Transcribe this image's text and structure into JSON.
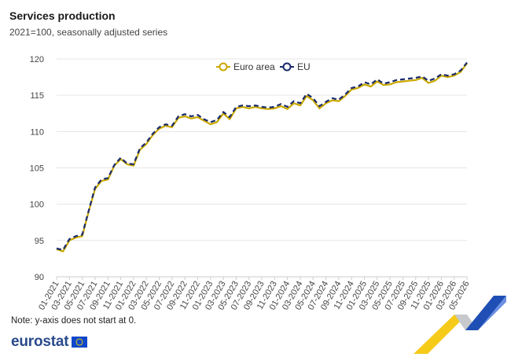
{
  "header": {
    "title": "Services production",
    "subtitle": "2021=100, seasonally adjusted series"
  },
  "footer": {
    "note": "Note: y-axis does not start at 0.",
    "logo_text": "eurostat"
  },
  "colors": {
    "euro_area": "#c9a800",
    "eu": "#1a2a6c",
    "grid": "#e6e6e6",
    "axis": "#cccccc",
    "deco_yellow": "#f5c400",
    "deco_blue": "#1f4fb5",
    "deco_grey": "#c7c9cc"
  },
  "icons": [
    "eu-flag-icon",
    "eurostat-decoration-icon"
  ],
  "chart_data": {
    "type": "line",
    "title": "",
    "xlabel": "",
    "ylabel": "",
    "ylim": [
      90,
      120
    ],
    "yticks": [
      90,
      95,
      100,
      105,
      110,
      115,
      120
    ],
    "grid": "horizontal",
    "legend_position": "top-center",
    "x_start": "2021-01",
    "x_end": "2026-05",
    "xtick_labels": [
      "01-2021",
      "03-2021",
      "05-2021",
      "07-2021",
      "09-2021",
      "11-2021",
      "01-2022",
      "03-2022",
      "05-2022",
      "07-2022",
      "09-2022",
      "11-2022",
      "01-2023",
      "03-2023",
      "05-2023",
      "07-2023",
      "09-2023",
      "11-2023",
      "01-2024",
      "03-2024",
      "05-2024",
      "07-2024",
      "09-2024",
      "11-2024",
      "01-2025",
      "03-2025",
      "05-2025",
      "07-2025",
      "09-2025",
      "11-2025",
      "01-2026",
      "03-2026",
      "05-2026"
    ],
    "series": [
      {
        "name": "Euro area",
        "style": "solid-circle-marker",
        "values": [
          93.8,
          93.5,
          95.0,
          95.4,
          95.6,
          99.0,
          102.1,
          103.2,
          103.4,
          105.3,
          106.2,
          105.5,
          105.3,
          107.5,
          108.3,
          109.5,
          110.4,
          110.8,
          110.6,
          111.9,
          112.1,
          111.8,
          112.0,
          111.5,
          111.0,
          111.3,
          112.5,
          111.7,
          113.2,
          113.4,
          113.2,
          113.4,
          113.2,
          113.1,
          113.2,
          113.5,
          113.1,
          113.9,
          113.6,
          114.9,
          114.3,
          113.2,
          113.9,
          114.3,
          114.2,
          114.9,
          115.8,
          116.0,
          116.5,
          116.2,
          116.9,
          116.4,
          116.5,
          116.8,
          116.9,
          117.0,
          117.1,
          117.4,
          116.7,
          117.0,
          117.7,
          117.5,
          117.7,
          118.2,
          119.4
        ]
      },
      {
        "name": "EU",
        "style": "dashed-circle-marker",
        "values": [
          93.9,
          93.7,
          95.2,
          95.6,
          95.8,
          99.1,
          102.3,
          103.4,
          103.6,
          105.4,
          106.4,
          105.6,
          105.5,
          107.7,
          108.5,
          109.7,
          110.6,
          111.0,
          110.8,
          112.1,
          112.4,
          112.1,
          112.3,
          111.7,
          111.3,
          111.6,
          112.7,
          112.0,
          113.4,
          113.6,
          113.5,
          113.6,
          113.4,
          113.3,
          113.4,
          113.8,
          113.4,
          114.2,
          113.9,
          115.2,
          114.6,
          113.5,
          114.1,
          114.6,
          114.4,
          115.1,
          116.0,
          116.2,
          116.8,
          116.5,
          117.2,
          116.6,
          116.8,
          117.1,
          117.2,
          117.3,
          117.4,
          117.6,
          117.0,
          117.3,
          117.9,
          117.7,
          117.9,
          118.4,
          119.5
        ]
      }
    ]
  }
}
